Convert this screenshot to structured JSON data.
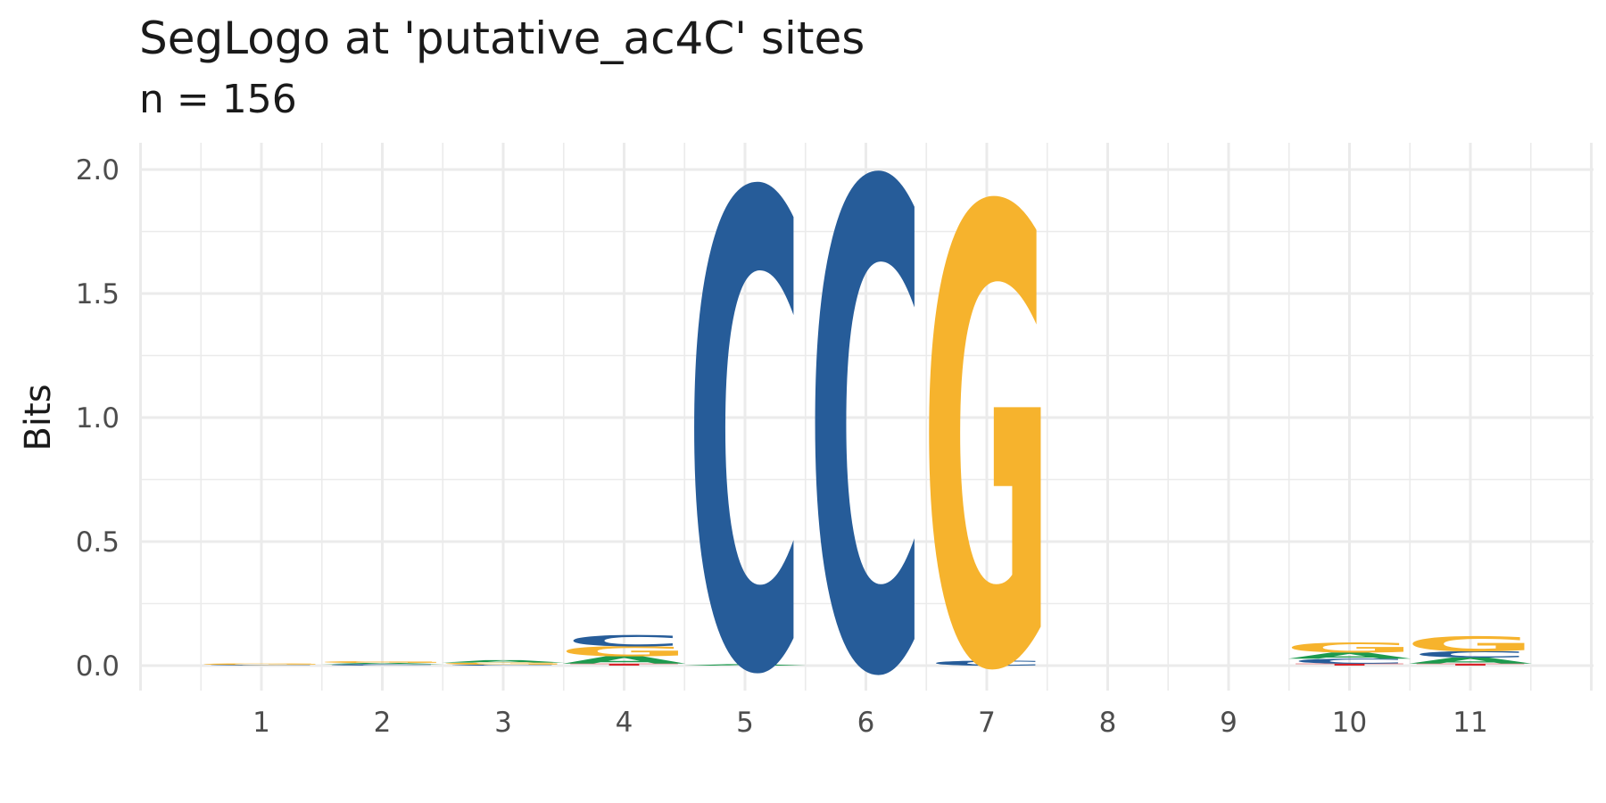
{
  "chart_data": {
    "type": "sequence_logo",
    "title": "SegLogo at 'putative_ac4C' sites",
    "subtitle": "n = 156",
    "xlabel": "",
    "ylabel": "Bits",
    "ylim": [
      0,
      2.0
    ],
    "yticks": [
      "0.0",
      "0.5",
      "1.0",
      "1.5",
      "2.0"
    ],
    "positions": [
      "1",
      "2",
      "3",
      "4",
      "5",
      "6",
      "7",
      "8",
      "9",
      "10",
      "11"
    ],
    "colors": {
      "A": "#1d9a4e",
      "C": "#265c99",
      "G": "#f6b32d",
      "T": "#d8232a"
    },
    "grid": true,
    "legend": "none",
    "stacks": [
      {
        "pos": "1",
        "letters": [
          {
            "base": "C",
            "bits": 0.003
          },
          {
            "base": "G",
            "bits": 0.006
          }
        ]
      },
      {
        "pos": "2",
        "letters": [
          {
            "base": "C",
            "bits": 0.006
          },
          {
            "base": "A",
            "bits": 0.005
          },
          {
            "base": "G",
            "bits": 0.007
          }
        ]
      },
      {
        "pos": "3",
        "letters": [
          {
            "base": "C",
            "bits": 0.004
          },
          {
            "base": "G",
            "bits": 0.008
          },
          {
            "base": "A",
            "bits": 0.01
          }
        ]
      },
      {
        "pos": "4",
        "letters": [
          {
            "base": "T",
            "bits": 0.008
          },
          {
            "base": "A",
            "bits": 0.03
          },
          {
            "base": "G",
            "bits": 0.04
          },
          {
            "base": "C",
            "bits": 0.045
          }
        ]
      },
      {
        "pos": "5",
        "letters": [
          {
            "base": "A",
            "bits": 0.006
          },
          {
            "base": "C",
            "bits": 1.91
          }
        ]
      },
      {
        "pos": "6",
        "letters": [
          {
            "base": "C",
            "bits": 1.96
          }
        ]
      },
      {
        "pos": "7",
        "letters": [
          {
            "base": "C",
            "bits": 0.02
          },
          {
            "base": "G",
            "bits": 1.84
          }
        ]
      },
      {
        "pos": "8",
        "letters": []
      },
      {
        "pos": "9",
        "letters": []
      },
      {
        "pos": "10",
        "letters": [
          {
            "base": "T",
            "bits": 0.008
          },
          {
            "base": "C",
            "bits": 0.02
          },
          {
            "base": "A",
            "bits": 0.025
          },
          {
            "base": "G",
            "bits": 0.04
          }
        ]
      },
      {
        "pos": "11",
        "letters": [
          {
            "base": "T",
            "bits": 0.008
          },
          {
            "base": "A",
            "bits": 0.025
          },
          {
            "base": "C",
            "bits": 0.025
          },
          {
            "base": "G",
            "bits": 0.06
          }
        ]
      }
    ]
  }
}
